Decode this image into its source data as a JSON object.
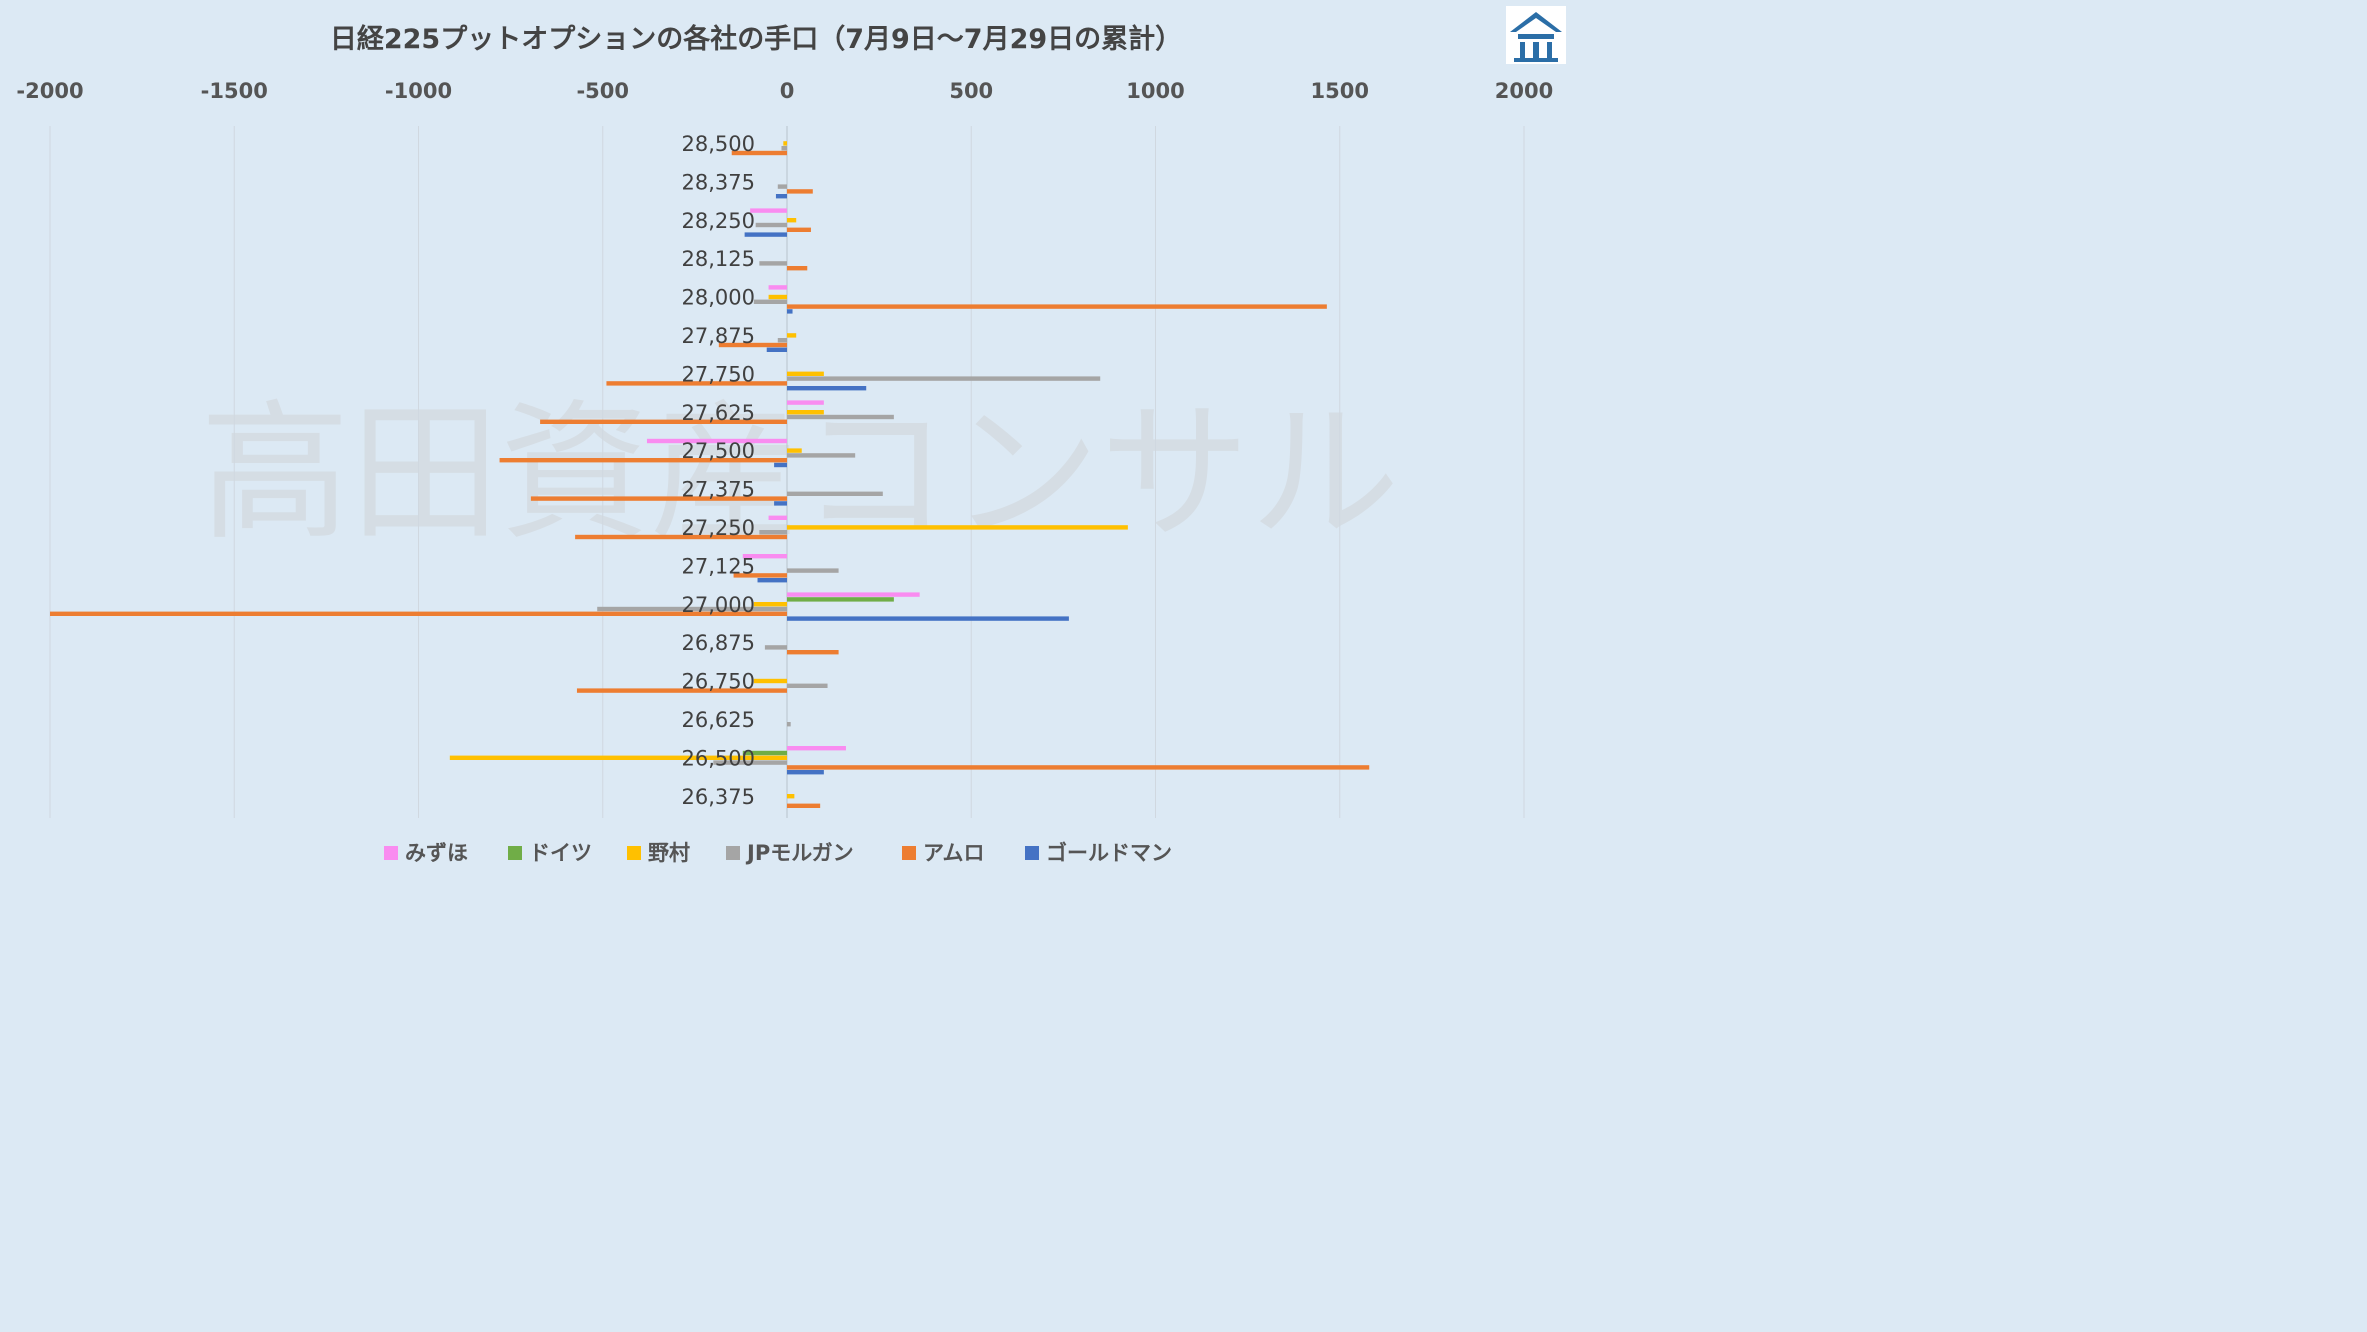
{
  "watermark": "高田資産コンサル",
  "logo": {
    "icon": "temple-logo-icon",
    "color": "#2b6ea7"
  },
  "chart_data": {
    "type": "bar",
    "orientation": "horizontal",
    "title": "日経225プットオプションの各社の手口（7月9日～7月29日の累計）",
    "xlim": [
      -2000,
      2000
    ],
    "xticks": [
      -2000,
      -1500,
      -1000,
      -500,
      0,
      500,
      1000,
      1500,
      2000
    ],
    "x_axis_position": "top",
    "grid": "vertical",
    "legend_position": "bottom",
    "categories": [
      "28,500",
      "28,375",
      "28,250",
      "28,125",
      "28,000",
      "27,875",
      "27,750",
      "27,625",
      "27,500",
      "27,375",
      "27,250",
      "27,125",
      "27,000",
      "26,875",
      "26,750",
      "26,625",
      "26,500",
      "26,375"
    ],
    "series": [
      {
        "name": "みずほ",
        "color": "#f98cf0",
        "values": [
          0,
          0,
          -100,
          0,
          -50,
          0,
          0,
          100,
          -380,
          0,
          -50,
          -120,
          360,
          0,
          0,
          0,
          160,
          0
        ]
      },
      {
        "name": "ドイツ",
        "color": "#70ad47",
        "values": [
          0,
          0,
          0,
          0,
          0,
          0,
          0,
          0,
          0,
          0,
          0,
          0,
          290,
          0,
          0,
          0,
          -120,
          0
        ]
      },
      {
        "name": "野村",
        "color": "#ffc000",
        "values": [
          -10,
          0,
          25,
          0,
          -50,
          25,
          100,
          100,
          40,
          0,
          925,
          0,
          -90,
          0,
          -90,
          0,
          -915,
          20
        ]
      },
      {
        "name": "JPモルガン",
        "color": "#a5a5a5",
        "values": [
          -15,
          -25,
          -85,
          -75,
          -90,
          -25,
          850,
          290,
          185,
          260,
          -75,
          140,
          -515,
          -60,
          110,
          10,
          -200,
          0
        ]
      },
      {
        "name": "アムロ",
        "color": "#ed7d31",
        "values": [
          -150,
          70,
          65,
          55,
          1465,
          -185,
          -490,
          -670,
          -780,
          -695,
          -575,
          -145,
          -2000,
          140,
          -570,
          0,
          1580,
          90
        ]
      },
      {
        "name": "ゴールドマン",
        "color": "#4472c4",
        "values": [
          0,
          -30,
          -115,
          0,
          15,
          -55,
          215,
          0,
          -35,
          -35,
          0,
          -80,
          765,
          0,
          0,
          0,
          100,
          0
        ]
      }
    ]
  }
}
